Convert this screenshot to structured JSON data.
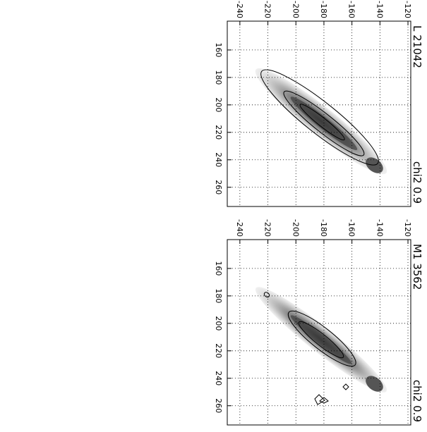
{
  "chart_data": [
    {
      "type": "image",
      "title": "L 21042",
      "subtitle": "chi2 0.9",
      "xlim": [
        139,
        274
      ],
      "xticks": [
        160,
        180,
        200,
        220,
        240,
        260
      ],
      "ylim": [
        -249,
        -118
      ],
      "yticks": [
        -240,
        -220,
        -200,
        -180,
        -160,
        -140,
        -120
      ],
      "grid": true
    },
    {
      "type": "image",
      "title": "M1 3562",
      "subtitle": "chi2 0.9",
      "xlim": [
        139,
        274
      ],
      "xticks": [
        160,
        180,
        200,
        220,
        240,
        260
      ],
      "ylim": [
        -249,
        -118
      ],
      "yticks": [
        -240,
        -220,
        -200,
        -180,
        -160,
        -140,
        -120
      ],
      "grid": true
    }
  ]
}
